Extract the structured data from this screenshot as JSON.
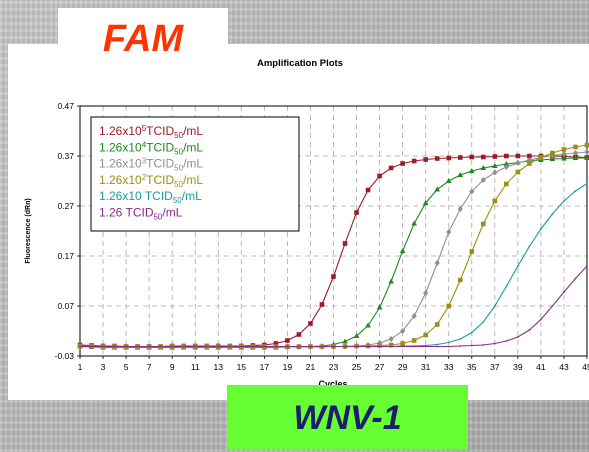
{
  "slide": {
    "channel": "FAM",
    "badge": "WNV-1"
  },
  "colors": {
    "s1": "#9b1b2a",
    "s2": "#1e8a1e",
    "s3": "#8f8f8f",
    "s4": "#9a9010",
    "s5": "#1a9aa0",
    "s6": "#8a2a8a"
  },
  "chart_data": {
    "type": "line",
    "title": "Amplification Plots",
    "xlabel": "Cycles",
    "ylabel": "Fluorescence (dRn)",
    "xlim": [
      1,
      45
    ],
    "ylim": [
      -0.03,
      0.47
    ],
    "x_ticks": [
      1,
      3,
      5,
      7,
      9,
      11,
      13,
      15,
      17,
      19,
      21,
      23,
      25,
      27,
      29,
      31,
      33,
      35,
      37,
      39,
      41,
      43,
      45
    ],
    "y_ticks": [
      -0.03,
      0.07,
      0.17,
      0.27,
      0.37,
      0.47
    ],
    "y_tick_labels": [
      "-0.03",
      "0.07",
      "0.17",
      "0.27",
      "0.37",
      "0.47"
    ],
    "grid": true,
    "legend_position": "top-left",
    "series": [
      {
        "name": "1.26x10⁵TCID₅₀/mL",
        "legend": {
          "pre": "1.26x10",
          "exp": "5",
          "mid": "TCID",
          "sub": "50",
          "post": "/mL"
        },
        "color_key": "s1",
        "marker": "square",
        "x": [
          1,
          2,
          3,
          4,
          5,
          6,
          7,
          8,
          9,
          10,
          11,
          12,
          13,
          14,
          15,
          16,
          17,
          18,
          19,
          20,
          21,
          22,
          23,
          24,
          25,
          26,
          27,
          28,
          29,
          30,
          31,
          32,
          33,
          34,
          35,
          36,
          37,
          38,
          39,
          40,
          41,
          42,
          43,
          44,
          45
        ],
        "y": [
          -0.008,
          -0.009,
          -0.01,
          -0.01,
          -0.011,
          -0.011,
          -0.011,
          -0.011,
          -0.01,
          -0.01,
          -0.01,
          -0.01,
          -0.01,
          -0.01,
          -0.01,
          -0.009,
          -0.008,
          -0.005,
          0.001,
          0.013,
          0.035,
          0.073,
          0.129,
          0.195,
          0.257,
          0.302,
          0.33,
          0.346,
          0.355,
          0.36,
          0.363,
          0.365,
          0.366,
          0.367,
          0.368,
          0.368,
          0.369,
          0.37,
          0.37,
          0.37,
          0.37,
          0.37,
          0.369,
          0.368,
          0.367
        ]
      },
      {
        "name": "1.26x10⁴TCID₅₀/mL",
        "legend": {
          "pre": "1.26x10",
          "exp": "4",
          "mid": "TCID",
          "sub": "50",
          "post": "/mL"
        },
        "color_key": "s2",
        "marker": "triangle",
        "x": [
          1,
          2,
          3,
          4,
          5,
          6,
          7,
          8,
          9,
          10,
          11,
          12,
          13,
          14,
          15,
          16,
          17,
          18,
          19,
          20,
          21,
          22,
          23,
          24,
          25,
          26,
          27,
          28,
          29,
          30,
          31,
          32,
          33,
          34,
          35,
          36,
          37,
          38,
          39,
          40,
          41,
          42,
          43,
          44,
          45
        ],
        "y": [
          -0.011,
          -0.012,
          -0.013,
          -0.013,
          -0.013,
          -0.013,
          -0.013,
          -0.013,
          -0.013,
          -0.013,
          -0.013,
          -0.013,
          -0.013,
          -0.013,
          -0.013,
          -0.013,
          -0.013,
          -0.013,
          -0.012,
          -0.012,
          -0.011,
          -0.01,
          -0.007,
          -0.001,
          0.01,
          0.031,
          0.067,
          0.119,
          0.18,
          0.235,
          0.276,
          0.303,
          0.32,
          0.332,
          0.34,
          0.346,
          0.35,
          0.354,
          0.357,
          0.36,
          0.362,
          0.364,
          0.365,
          0.366,
          0.366
        ]
      },
      {
        "name": "1.26x10³TCID₅₀/mL",
        "legend": {
          "pre": "1.26x10",
          "exp": "3",
          "mid": "TCID",
          "sub": "50",
          "post": "/mL"
        },
        "color_key": "s3",
        "marker": "diamond",
        "x": [
          1,
          2,
          3,
          4,
          5,
          6,
          7,
          8,
          9,
          10,
          11,
          12,
          13,
          14,
          15,
          16,
          17,
          18,
          19,
          20,
          21,
          22,
          23,
          24,
          25,
          26,
          27,
          28,
          29,
          30,
          31,
          32,
          33,
          34,
          35,
          36,
          37,
          38,
          39,
          40,
          41,
          42,
          43,
          44,
          45
        ],
        "y": [
          -0.01,
          -0.011,
          -0.012,
          -0.012,
          -0.012,
          -0.012,
          -0.012,
          -0.012,
          -0.012,
          -0.012,
          -0.012,
          -0.012,
          -0.012,
          -0.012,
          -0.012,
          -0.012,
          -0.012,
          -0.012,
          -0.012,
          -0.012,
          -0.012,
          -0.012,
          -0.011,
          -0.011,
          -0.01,
          -0.008,
          -0.004,
          0.004,
          0.02,
          0.05,
          0.096,
          0.156,
          0.218,
          0.264,
          0.299,
          0.322,
          0.337,
          0.348,
          0.356,
          0.362,
          0.367,
          0.371,
          0.374,
          0.376,
          0.378
        ]
      },
      {
        "name": "1.26x10²TCID₅₀/mL",
        "legend": {
          "pre": "1.26x10",
          "exp": "2",
          "mid": "TCID",
          "sub": "50",
          "post": "/mL"
        },
        "color_key": "s4",
        "marker": "square",
        "x": [
          1,
          2,
          3,
          4,
          5,
          6,
          7,
          8,
          9,
          10,
          11,
          12,
          13,
          14,
          15,
          16,
          17,
          18,
          19,
          20,
          21,
          22,
          23,
          24,
          25,
          26,
          27,
          28,
          29,
          30,
          31,
          32,
          33,
          34,
          35,
          36,
          37,
          38,
          39,
          40,
          41,
          42,
          43,
          44,
          45
        ],
        "y": [
          -0.01,
          -0.011,
          -0.011,
          -0.011,
          -0.011,
          -0.011,
          -0.011,
          -0.011,
          -0.011,
          -0.011,
          -0.011,
          -0.011,
          -0.011,
          -0.011,
          -0.011,
          -0.011,
          -0.011,
          -0.011,
          -0.011,
          -0.011,
          -0.011,
          -0.011,
          -0.011,
          -0.011,
          -0.01,
          -0.01,
          -0.009,
          -0.008,
          -0.005,
          0.001,
          0.012,
          0.033,
          0.07,
          0.122,
          0.179,
          0.234,
          0.28,
          0.314,
          0.338,
          0.355,
          0.367,
          0.376,
          0.383,
          0.388,
          0.392
        ]
      },
      {
        "name": "1.26x10 TCID₅₀/mL",
        "legend": {
          "pre": "1.26x10 ",
          "exp": "",
          "mid": "TCID",
          "sub": "50",
          "post": "/mL"
        },
        "color_key": "s5",
        "marker": "line",
        "x": [
          1,
          2,
          3,
          4,
          5,
          6,
          7,
          8,
          9,
          10,
          11,
          12,
          13,
          14,
          15,
          16,
          17,
          18,
          19,
          20,
          21,
          22,
          23,
          24,
          25,
          26,
          27,
          28,
          29,
          30,
          31,
          32,
          33,
          34,
          35,
          36,
          37,
          38,
          39,
          40,
          41,
          42,
          43,
          44,
          45
        ],
        "y": [
          -0.01,
          -0.011,
          -0.011,
          -0.011,
          -0.011,
          -0.011,
          -0.011,
          -0.011,
          -0.011,
          -0.011,
          -0.011,
          -0.011,
          -0.011,
          -0.011,
          -0.011,
          -0.011,
          -0.011,
          -0.011,
          -0.011,
          -0.011,
          -0.011,
          -0.011,
          -0.011,
          -0.011,
          -0.011,
          -0.011,
          -0.011,
          -0.011,
          -0.01,
          -0.01,
          -0.009,
          -0.007,
          -0.003,
          0.004,
          0.017,
          0.038,
          0.07,
          0.109,
          0.15,
          0.189,
          0.224,
          0.254,
          0.28,
          0.3,
          0.315
        ]
      },
      {
        "name": "1.26 TCID₅₀/mL",
        "legend": {
          "pre": "1.26 ",
          "exp": "",
          "mid": "TCID",
          "sub": "50",
          "post": "/mL"
        },
        "color_key": "s6",
        "marker": "line",
        "x": [
          1,
          2,
          3,
          4,
          5,
          6,
          7,
          8,
          9,
          10,
          11,
          12,
          13,
          14,
          15,
          16,
          17,
          18,
          19,
          20,
          21,
          22,
          23,
          24,
          25,
          26,
          27,
          28,
          29,
          30,
          31,
          32,
          33,
          34,
          35,
          36,
          37,
          38,
          39,
          40,
          41,
          42,
          43,
          44,
          45
        ],
        "y": [
          -0.011,
          -0.011,
          -0.011,
          -0.011,
          -0.011,
          -0.011,
          -0.011,
          -0.011,
          -0.011,
          -0.011,
          -0.011,
          -0.011,
          -0.011,
          -0.011,
          -0.011,
          -0.011,
          -0.011,
          -0.011,
          -0.011,
          -0.011,
          -0.011,
          -0.011,
          -0.011,
          -0.011,
          -0.011,
          -0.011,
          -0.011,
          -0.011,
          -0.011,
          -0.011,
          -0.011,
          -0.011,
          -0.011,
          -0.01,
          -0.009,
          -0.008,
          -0.005,
          0.0,
          0.008,
          0.022,
          0.043,
          0.07,
          0.098,
          0.125,
          0.15
        ]
      }
    ]
  }
}
